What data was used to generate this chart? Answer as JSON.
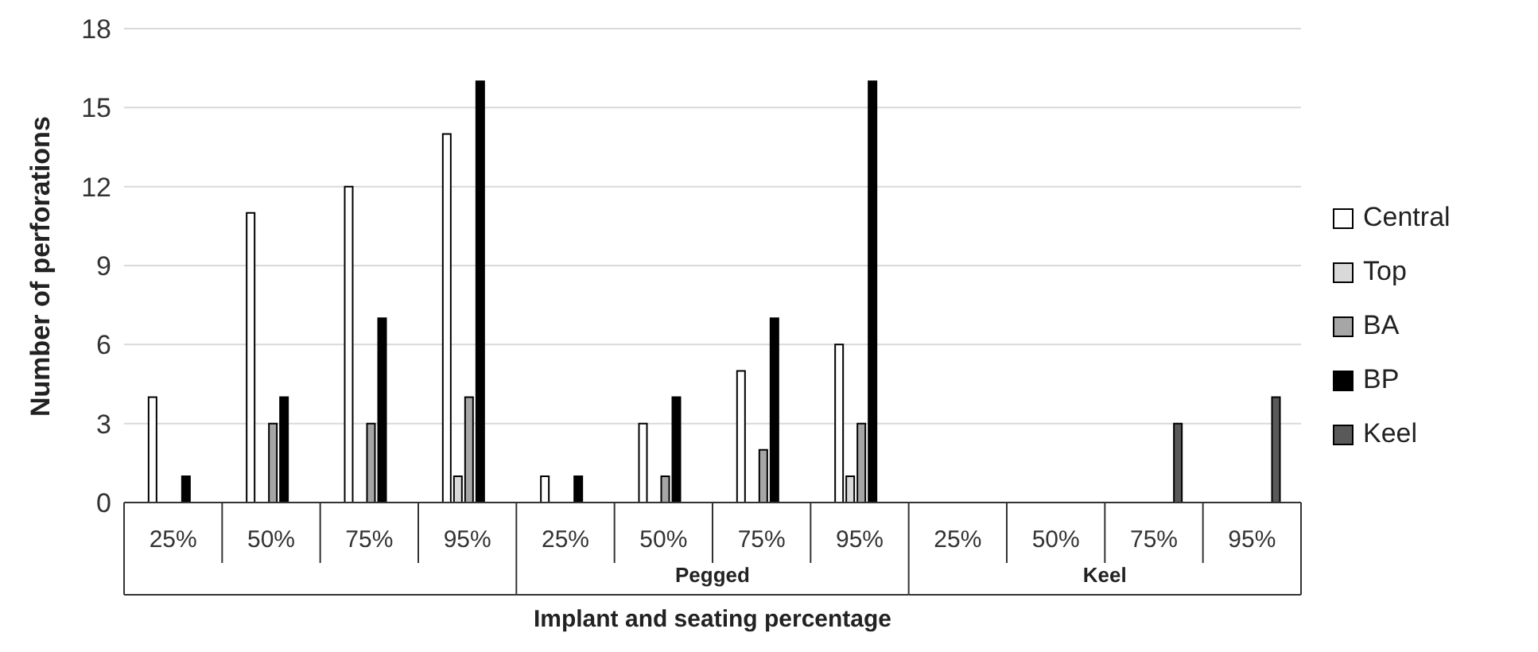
{
  "chart_data": {
    "type": "bar",
    "ylabel": "Number of perforations",
    "xlabel": "Implant and seating percentage",
    "categories": [
      "25%",
      "50%",
      "75%",
      "95%",
      "25%",
      "50%",
      "75%",
      "95%",
      "25%",
      "50%",
      "75%",
      "95%"
    ],
    "series": [
      {
        "name": "Central",
        "color": "#ffffff",
        "values": [
          4,
          11,
          12,
          14,
          1,
          3,
          5,
          6,
          0,
          0,
          0,
          0
        ]
      },
      {
        "name": "Top",
        "color": "#d9d9d9",
        "values": [
          0,
          0,
          0,
          1,
          0,
          0,
          0,
          1,
          0,
          0,
          0,
          0
        ]
      },
      {
        "name": "BA",
        "color": "#a6a6a6",
        "values": [
          0,
          3,
          3,
          4,
          0,
          1,
          2,
          3,
          0,
          0,
          0,
          0
        ]
      },
      {
        "name": "BP",
        "color": "#000000",
        "values": [
          1,
          4,
          7,
          16,
          1,
          4,
          7,
          16,
          0,
          0,
          0,
          0
        ]
      },
      {
        "name": "Keel",
        "color": "#595959",
        "values": [
          0,
          0,
          0,
          0,
          0,
          0,
          0,
          0,
          0,
          0,
          3,
          4
        ]
      }
    ],
    "annotations": [
      "Pegged",
      "Keel"
    ],
    "ylim": [
      0,
      18
    ],
    "yticks": [
      0,
      3,
      6,
      9,
      12,
      15,
      18
    ],
    "grid": "y",
    "legend": "right"
  }
}
